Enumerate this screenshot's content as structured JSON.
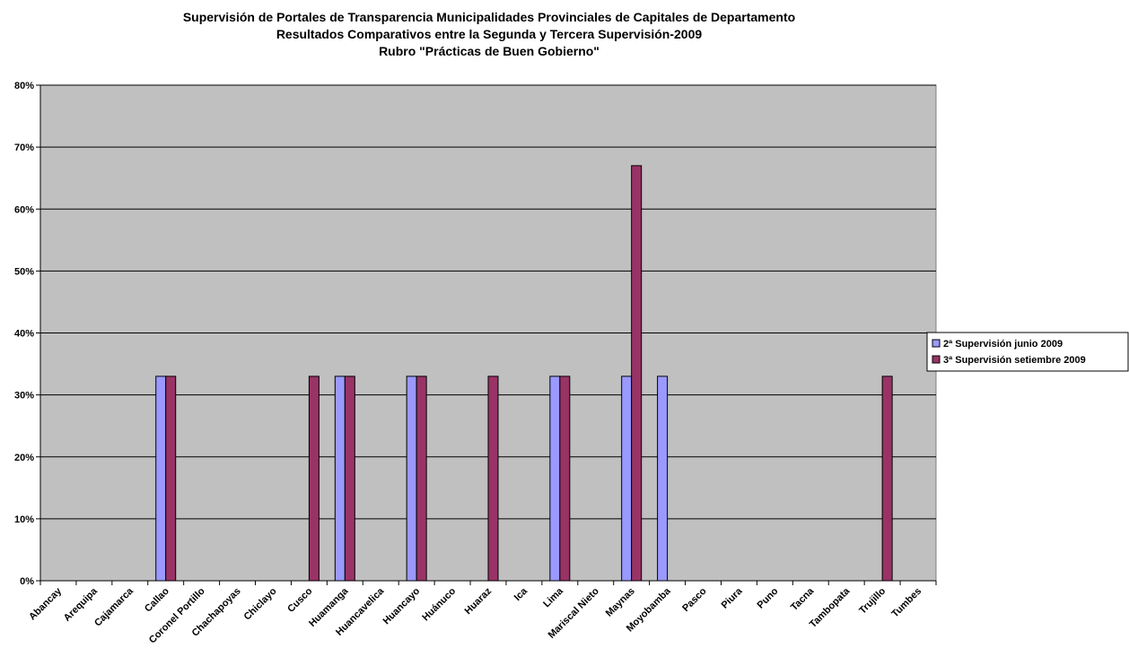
{
  "chart_data": {
    "type": "bar",
    "title_lines": [
      "Supervisión de Portales de Transparencia Municipalidades Provinciales de Capitales de Departamento",
      "Resultados Comparativos entre la Segunda y Tercera Supervisión-2009",
      "Rubro \"Prácticas de Buen Gobierno\""
    ],
    "categories": [
      "Abancay",
      "Arequipa",
      "Cajamarca",
      "Callao",
      "Coronel Portillo",
      "Chachapoyas",
      "Chiclayo",
      "Cusco",
      "Huamanga",
      "Huancavelica",
      "Huancayo",
      "Huánuco",
      "Huaraz",
      "Ica",
      "Lima",
      "Mariscal Nieto",
      "Maynas",
      "Moyobamba",
      "Pasco",
      "Piura",
      "Puno",
      "Tacna",
      "Tambopata",
      "Trujillo",
      "Tumbes"
    ],
    "series": [
      {
        "name": "2ª Supervisión junio 2009",
        "color": "#9999ff",
        "values": [
          0,
          0,
          0,
          33,
          0,
          0,
          0,
          0,
          33,
          0,
          33,
          0,
          0,
          0,
          33,
          0,
          33,
          33,
          0,
          0,
          0,
          0,
          0,
          0,
          0
        ]
      },
      {
        "name": "3ª Supervisión setiembre 2009",
        "color": "#993366",
        "values": [
          0,
          0,
          0,
          33,
          0,
          0,
          0,
          33,
          33,
          0,
          33,
          0,
          33,
          0,
          33,
          0,
          67,
          0,
          0,
          0,
          0,
          0,
          0,
          33,
          0
        ]
      }
    ],
    "ylim": [
      0,
      80
    ],
    "yticks": [
      "0%",
      "10%",
      "20%",
      "30%",
      "40%",
      "50%",
      "60%",
      "70%",
      "80%"
    ],
    "grid": true,
    "plot_background": "#c0c0c0",
    "legend_position": "right"
  }
}
